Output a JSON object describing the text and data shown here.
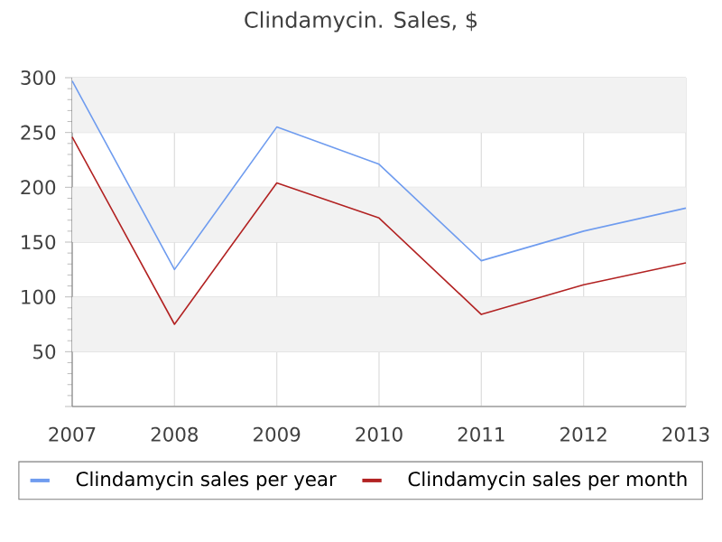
{
  "chart_data": {
    "type": "line",
    "title": "Clindamycin. Sales, $",
    "x": [
      2007,
      2008,
      2009,
      2010,
      2011,
      2012,
      2013
    ],
    "series": [
      {
        "name": "Clindamycin sales per year",
        "color": "#6f9cef",
        "values": [
          297,
          125,
          255,
          221,
          133,
          160,
          181
        ]
      },
      {
        "name": "Clindamycin sales per month",
        "color": "#b22222",
        "values": [
          246,
          75,
          204,
          172,
          84,
          111,
          131
        ]
      }
    ],
    "xlim": [
      2007,
      2013
    ],
    "xticks": [
      2007,
      2008,
      2009,
      2010,
      2011,
      2012,
      2013
    ],
    "ylim": [
      0,
      300
    ],
    "yticks": [
      {
        "value": 0,
        "label": null
      },
      50,
      100,
      150,
      200,
      250,
      300
    ],
    "bands": [
      {
        "axis": "y",
        "from": 50,
        "to": 100,
        "color": "#f2f2f2"
      },
      {
        "axis": "y",
        "from": 150,
        "to": 200,
        "color": "#f2f2f2"
      },
      {
        "axis": "y",
        "from": 250,
        "to": 300,
        "color": "#f2f2f2"
      }
    ],
    "grid": true,
    "legend": "bottom",
    "marker": "none",
    "line_style": "solid"
  }
}
